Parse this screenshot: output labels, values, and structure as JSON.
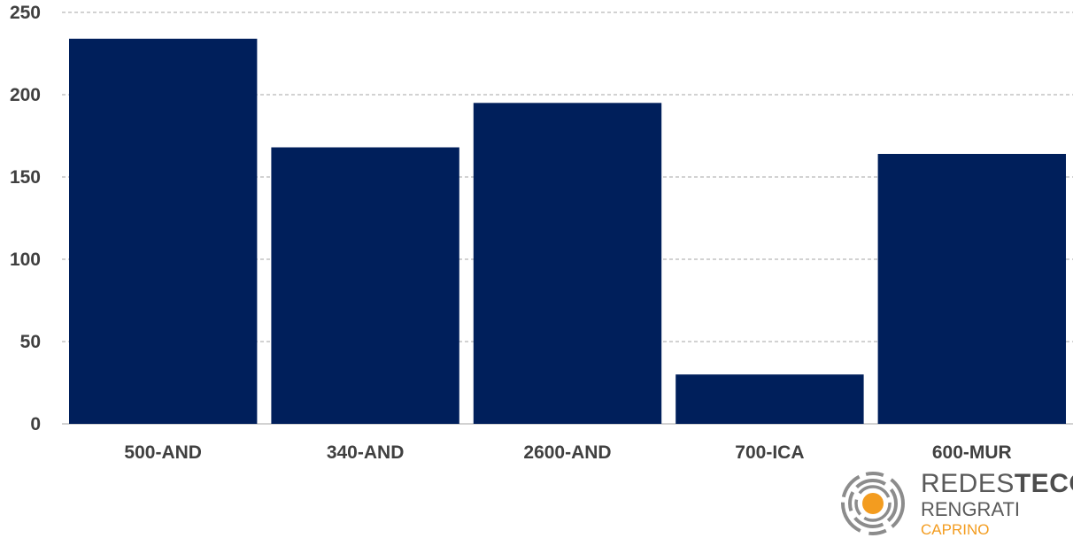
{
  "chart_data": {
    "type": "bar",
    "categories": [
      "500-AND",
      "340-AND",
      "2600-AND",
      "700-ICA",
      "600-MUR"
    ],
    "values": [
      234,
      168,
      195,
      30,
      164
    ],
    "title": "",
    "xlabel": "",
    "ylabel": "",
    "ylim": [
      0,
      250
    ],
    "yticks": [
      "0",
      "50",
      "100",
      "150",
      "200",
      "250"
    ],
    "grid": true,
    "legend": "none"
  },
  "colors": {
    "bar": "#001f5b",
    "grid": "#a6a6a6",
    "axis": "#a6a6a6",
    "logo_orange": "#f39c1f",
    "logo_gray": "#5a5a5a"
  },
  "logo": {
    "brand_light": "REDES",
    "brand_bold": "TECO",
    "line2": "RENGRATI",
    "line3": "CAPRINO",
    "icon": "concentric-circles-icon"
  }
}
